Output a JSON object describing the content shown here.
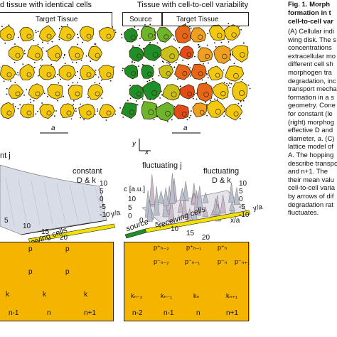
{
  "headers": {
    "left_title": "d tissue with identical cells",
    "right_title": "Tissue with cell-to-cell variability",
    "left_target": "Target Tissue",
    "right_source": "Source",
    "right_target": "Target Tissue"
  },
  "axes": {
    "a": "a",
    "y": "y",
    "x": "x"
  },
  "surface_left": {
    "label_j": "nt j",
    "label_constant": "constant",
    "label_dk": "D & k",
    "yticks": [
      "10",
      "5",
      "0",
      "-5",
      "-10"
    ],
    "ylabel": "y/a",
    "xticks": [
      "5",
      "10",
      "15",
      "20"
    ],
    "receiving": "eiving cells"
  },
  "surface_right": {
    "label_fj": "fluctuating j",
    "label_fdk1": "fluctuating",
    "label_fdk2": "D & k",
    "zlabel": "c [a.u.]",
    "zticks": [
      "10",
      "5",
      "0"
    ],
    "yticks": [
      "10",
      "5",
      "0",
      "-5",
      "-10"
    ],
    "ylabel": "y/a",
    "xticks": [
      "0",
      "5",
      "10",
      "15",
      "20"
    ],
    "xlabel": "x/a",
    "source": "source",
    "receiving": "receiving cells"
  },
  "lattice_left": {
    "p_labels": [
      "p",
      "p",
      "p",
      "p"
    ],
    "k_labels": [
      "k",
      "k",
      "k"
    ],
    "cells": [
      "n-1",
      "n",
      "n+1"
    ]
  },
  "lattice_right": {
    "p_labels": [
      "p⁺ₙ₋₂",
      "p⁺ₙ₋₁",
      "p⁺ₙ",
      "p⁻ₙ₋₂",
      "p⁻ₙ₋₁",
      "p⁻ₙ",
      "p⁻ₙ₊₁"
    ],
    "k_labels": [
      "kₙ₋₂",
      "kₙ₋₁",
      "kₙ",
      "kₙ₊₁"
    ],
    "cells": [
      "n-2",
      "n-1",
      "n",
      "n+1"
    ]
  },
  "caption": {
    "line1": "Fig. 1. Morph",
    "line2": "formation in t",
    "line3": "cell-to-cell var",
    "lines": [
      "(A) Cellular indi",
      "wing disk. The s",
      "concentrations",
      "extracellular mo",
      "different cell sh",
      "morphogen tra",
      "degradation, inc",
      "transport mecha",
      "formation in a s",
      "geometry. Cone",
      "for constant (le",
      "(right) morphog",
      "effective D and",
      "diameter, a. (C)",
      "lattice model of",
      "A. The hopping",
      "describe transpo",
      "and n+1. The",
      "their mean valu",
      "cell-to-cell varia",
      "by arrows of dif",
      "degradation rat",
      "fluctuates."
    ]
  },
  "colors": {
    "cell_yellow": "#f2c811",
    "cell_orange": "#f0a020",
    "cell_red": "#e24a1a",
    "cell_green": "#1f8f2a",
    "lattice_bg": "#f4b400",
    "lattice_dark": "#e8890a"
  }
}
